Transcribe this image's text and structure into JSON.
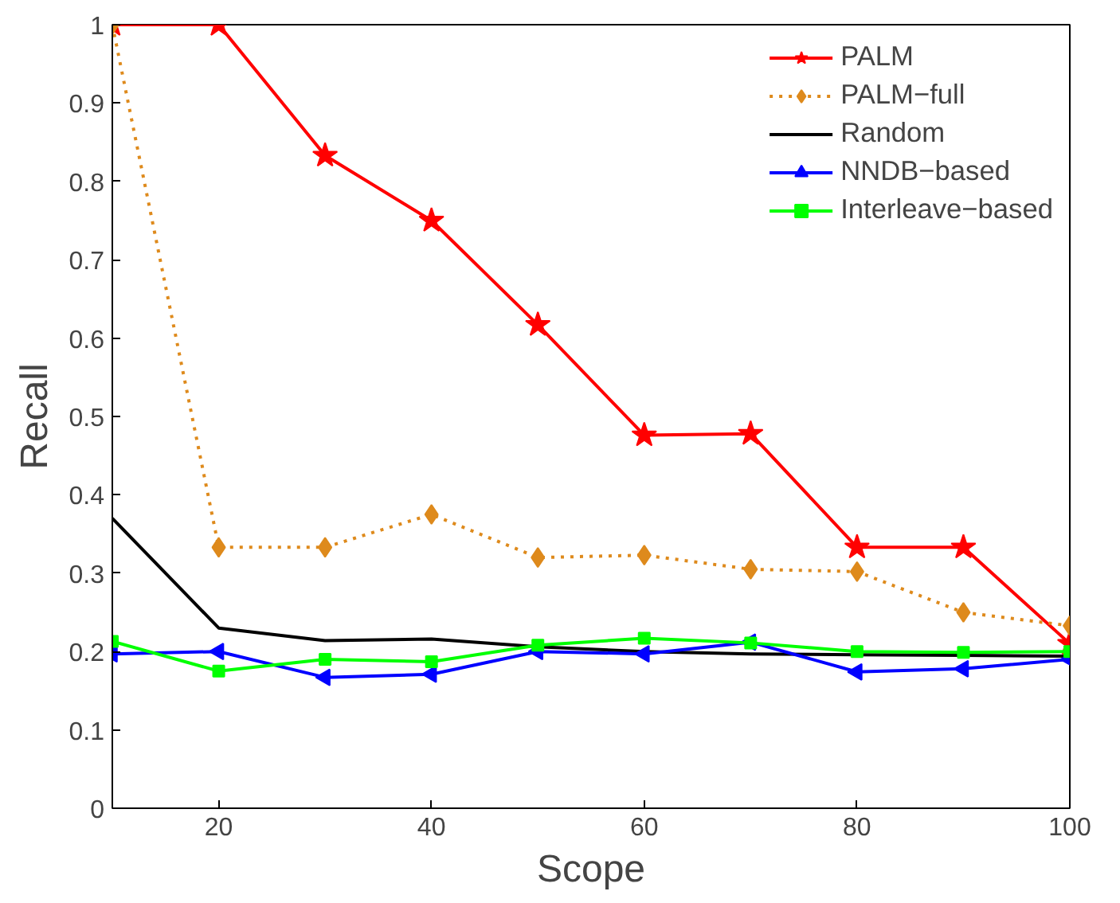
{
  "chart_data": {
    "type": "line",
    "xlabel": "Scope",
    "ylabel": "Recall",
    "x": [
      10,
      20,
      30,
      40,
      50,
      60,
      70,
      80,
      90,
      100
    ],
    "xlim": [
      10,
      100
    ],
    "xticks": [
      20,
      40,
      60,
      80,
      100
    ],
    "ylim": [
      0,
      1
    ],
    "yticks": [
      0,
      0.1,
      0.2,
      0.3,
      0.4,
      0.5,
      0.6,
      0.7,
      0.8,
      0.9,
      1
    ],
    "grid": false,
    "legend": "top right",
    "series": [
      {
        "name": "PALM",
        "color": "#ff0000",
        "marker": "star",
        "line_style": "solid",
        "values": [
          1,
          1,
          0.833,
          0.75,
          0.617,
          0.476,
          0.478,
          0.333,
          0.333,
          0.21
        ]
      },
      {
        "name": "PALM−full",
        "color": "#de8a1c",
        "marker": "diamond",
        "line_style": "dotted",
        "values": [
          1,
          0.333,
          0.333,
          0.375,
          0.32,
          0.323,
          0.305,
          0.302,
          0.25,
          0.233
        ]
      },
      {
        "name": "Random",
        "color": "#000000",
        "marker": "none",
        "line_style": "solid",
        "values": [
          0.37,
          0.23,
          0.214,
          0.216,
          0.206,
          0.2,
          0.197,
          0.196,
          0.195,
          0.194
        ]
      },
      {
        "name": "NNDB−based",
        "color": "#0000ff",
        "marker": "triangle",
        "line_style": "solid",
        "values": [
          0.197,
          0.2,
          0.167,
          0.171,
          0.2,
          0.197,
          0.212,
          0.174,
          0.178,
          0.19
        ]
      },
      {
        "name": "Interleave−based",
        "color": "#00ff00",
        "marker": "square",
        "line_style": "solid",
        "values": [
          0.213,
          0.175,
          0.19,
          0.187,
          0.208,
          0.217,
          0.211,
          0.2,
          0.199,
          0.2
        ]
      }
    ]
  }
}
